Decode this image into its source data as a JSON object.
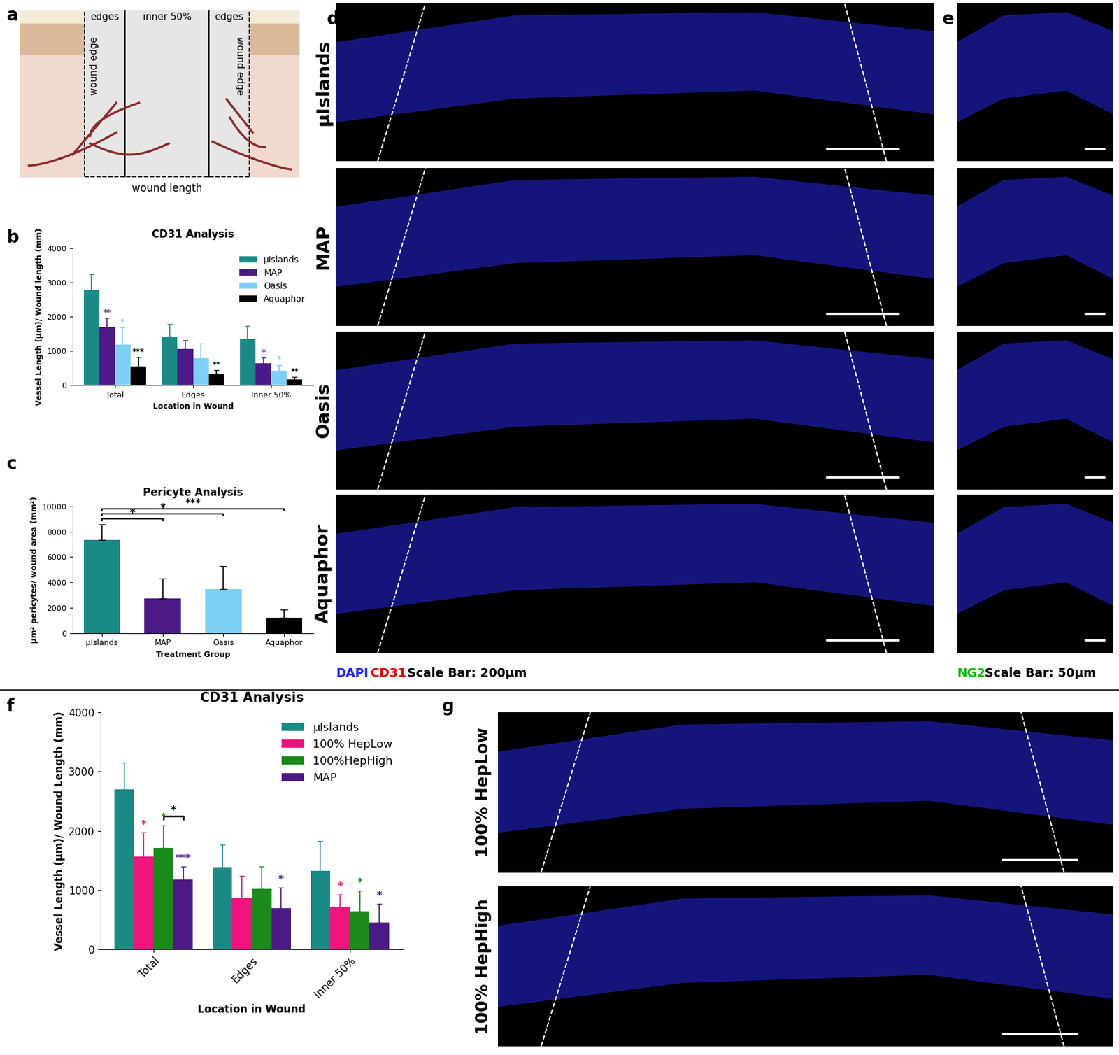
{
  "schematic": {
    "panel": "a",
    "top_labels": [
      "edges",
      "inner 50%",
      "edges"
    ],
    "side_labels": [
      "wound edge",
      "wound edge"
    ],
    "bottom_label": "wound length"
  },
  "chart_data": [
    {
      "panel": "b",
      "type": "bar",
      "title": "CD31 Analysis",
      "x_label": "Location in Wound",
      "y_label": "Vessel Length (µm)/ Wound length (mm)",
      "categories": [
        "Total",
        "Edges",
        "Inner 50%"
      ],
      "ylim": [
        0,
        4000
      ],
      "yticks": [
        0,
        1000,
        2000,
        3000,
        4000
      ],
      "legend": "upper right",
      "series": [
        {
          "name": "µIslands",
          "color": "#1a8a85",
          "values": [
            2780,
            1420,
            1350
          ],
          "errors": [
            450,
            350,
            370
          ],
          "stars": [
            null,
            null,
            null
          ]
        },
        {
          "name": "MAP",
          "color": "#4b1a86",
          "values": [
            1680,
            1060,
            640
          ],
          "errors": [
            280,
            250,
            150
          ],
          "stars": [
            "**",
            null,
            "*"
          ]
        },
        {
          "name": "Oasis",
          "color": "#7dd0f5",
          "values": [
            1180,
            780,
            420
          ],
          "errors": [
            500,
            430,
            170
          ],
          "stars": [
            "*",
            null,
            "*"
          ]
        },
        {
          "name": "Aquaphor",
          "color": "#000000",
          "values": [
            540,
            320,
            160
          ],
          "errors": [
            280,
            120,
            70
          ],
          "stars": [
            "***",
            "**",
            "**"
          ]
        }
      ]
    },
    {
      "panel": "c",
      "type": "bar",
      "title": "Pericyte Analysis",
      "x_label": "Treatment Group",
      "y_label": "µm² pericytes/ wound area (mm²)",
      "categories": [
        "µIslands",
        "MAP",
        "Oasis",
        "Aquaphor"
      ],
      "values": [
        7350,
        2750,
        3450,
        1200
      ],
      "errors": [
        1250,
        1550,
        1850,
        650
      ],
      "colors": [
        "#1a8a85",
        "#4b1a86",
        "#7dd0f5",
        "#000000"
      ],
      "ylim": [
        0,
        10000
      ],
      "yticks": [
        0,
        2000,
        4000,
        6000,
        8000,
        10000
      ],
      "comparisons": [
        {
          "from": "µIslands",
          "to": "MAP",
          "label": "*"
        },
        {
          "from": "µIslands",
          "to": "Oasis",
          "label": "*"
        },
        {
          "from": "µIslands",
          "to": "Aquaphor",
          "label": "***"
        }
      ]
    },
    {
      "panel": "f",
      "type": "bar",
      "title": "CD31 Analysis",
      "x_label": "Location in Wound",
      "y_label": "Vessel Length (µm)/ Wound Length (mm)",
      "categories": [
        "Total",
        "Edges",
        "Inner 50%"
      ],
      "ylim": [
        0,
        4000
      ],
      "yticks": [
        0,
        1000,
        2000,
        3000,
        4000
      ],
      "legend": "upper right",
      "series": [
        {
          "name": "µIslands",
          "color": "#1a8a85",
          "values": [
            2700,
            1390,
            1330
          ],
          "errors": [
            450,
            370,
            500
          ],
          "stars": [
            null,
            null,
            null
          ]
        },
        {
          "name": "100% HepLow",
          "color": "#f0147c",
          "values": [
            1570,
            860,
            720
          ],
          "errors": [
            400,
            380,
            210
          ],
          "stars": [
            "*",
            null,
            "*"
          ]
        },
        {
          "name": "100%HepHigh",
          "color": "#1a8a1a",
          "values": [
            1710,
            1020,
            640
          ],
          "errors": [
            380,
            380,
            350
          ],
          "stars": [
            "*",
            null,
            "*"
          ]
        },
        {
          "name": "MAP",
          "color": "#4b1a86",
          "values": [
            1180,
            700,
            450
          ],
          "errors": [
            220,
            340,
            320
          ],
          "stars": [
            "***",
            "*",
            "*"
          ]
        }
      ],
      "comparisons": [
        {
          "category": "Total",
          "from": "100%HepHigh",
          "to": "MAP",
          "label": "*"
        }
      ]
    }
  ],
  "micrographs": {
    "d": {
      "panel": "d",
      "rows": [
        "µIslands",
        "MAP",
        "Oasis",
        "Aquaphor"
      ],
      "caption": [
        {
          "text": "DAPI",
          "color": "#1f1fff"
        },
        {
          "text": "CD31",
          "color": "#e00000"
        },
        {
          "text": "Scale Bar: 200µm",
          "color": "#000000"
        }
      ]
    },
    "e": {
      "panel": "e",
      "caption": [
        {
          "text": "NG2",
          "color": "#00c000"
        },
        {
          "text": "Scale Bar: 50µm",
          "color": "#000000"
        }
      ]
    },
    "g": {
      "panel": "g",
      "rows": [
        "100% HepLow",
        "100% HepHigh"
      ]
    }
  }
}
